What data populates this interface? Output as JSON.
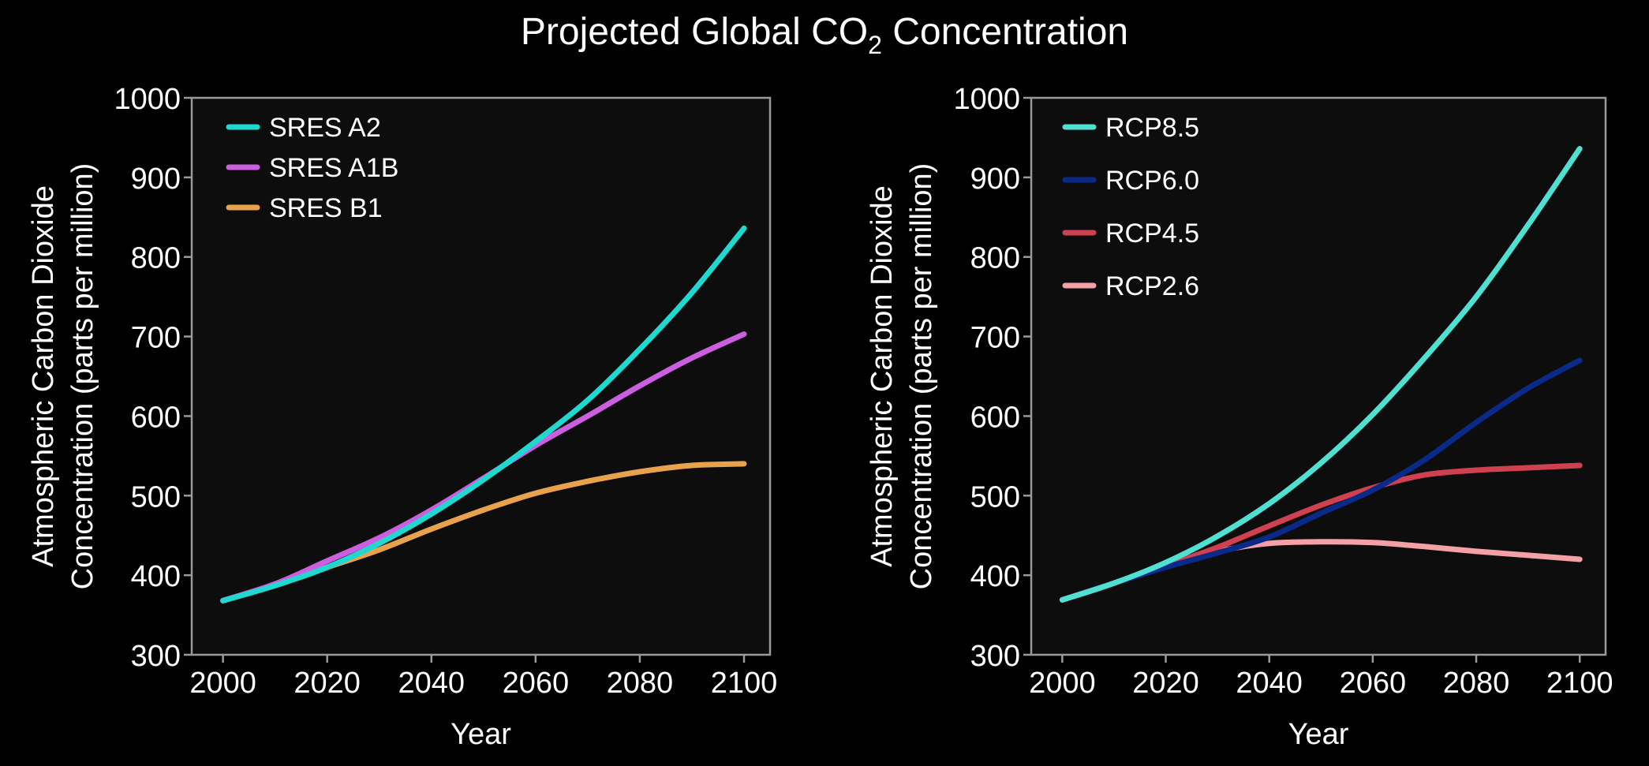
{
  "figure": {
    "title_main": "Projected Global CO",
    "title_sub": "2",
    "title_end": " Concentration",
    "background": "#000000",
    "panel_background": "#0d0d0d",
    "axis_color": "#9a9a9a",
    "text_color": "#ffffff"
  },
  "chart_data": [
    {
      "type": "line",
      "title": "",
      "xlabel": "Year",
      "ylabel_line1": "Atmospheric Carbon Dioxide",
      "ylabel_line2": "Concentration (parts per million)",
      "xlim": [
        1994,
        2105
      ],
      "ylim": [
        300,
        1000
      ],
      "xticks": [
        2000,
        2020,
        2040,
        2060,
        2080,
        2100
      ],
      "yticks": [
        300,
        400,
        500,
        600,
        700,
        800,
        900,
        1000
      ],
      "grid": false,
      "legend_position": "top-left",
      "x": [
        2000,
        2010,
        2020,
        2030,
        2040,
        2050,
        2060,
        2070,
        2080,
        2090,
        2100
      ],
      "series": [
        {
          "name": "SRES A2",
          "color": "#1fd8cf",
          "values": [
            368,
            387,
            410,
            440,
            477,
            520,
            568,
            620,
            684,
            755,
            836
          ]
        },
        {
          "name": "SRES A1B",
          "color": "#cc5fe0",
          "values": [
            368,
            389,
            418,
            447,
            482,
            522,
            563,
            600,
            638,
            673,
            703
          ]
        },
        {
          "name": "SRES B1",
          "color": "#e9a24c",
          "values": [
            368,
            388,
            410,
            432,
            458,
            482,
            503,
            518,
            530,
            538,
            540
          ]
        }
      ]
    },
    {
      "type": "line",
      "title": "",
      "xlabel": "Year",
      "ylabel_line1": "Atmospheric Carbon Dioxide",
      "ylabel_line2": "Concentration (parts per million)",
      "xlim": [
        1994,
        2105
      ],
      "ylim": [
        300,
        1000
      ],
      "xticks": [
        2000,
        2020,
        2040,
        2060,
        2080,
        2100
      ],
      "yticks": [
        300,
        400,
        500,
        600,
        700,
        800,
        900,
        1000
      ],
      "grid": false,
      "legend_position": "top-left",
      "x": [
        2000,
        2010,
        2020,
        2030,
        2040,
        2050,
        2060,
        2070,
        2080,
        2090,
        2100
      ],
      "series": [
        {
          "name": "RCP8.5",
          "color": "#4fe0d2",
          "values": [
            369,
            390,
            416,
            449,
            490,
            541,
            602,
            673,
            750,
            840,
            936
          ]
        },
        {
          "name": "RCP6.0",
          "color": "#0a2a8a",
          "values": [
            369,
            390,
            410,
            428,
            448,
            478,
            507,
            545,
            592,
            635,
            670
          ]
        },
        {
          "name": "RCP4.5",
          "color": "#cf4150",
          "values": [
            369,
            390,
            412,
            435,
            462,
            488,
            510,
            526,
            532,
            535,
            538
          ]
        },
        {
          "name": "RCP2.6",
          "color": "#f3a0a6",
          "values": [
            369,
            390,
            412,
            430,
            440,
            442,
            441,
            436,
            430,
            425,
            420
          ]
        }
      ]
    }
  ]
}
